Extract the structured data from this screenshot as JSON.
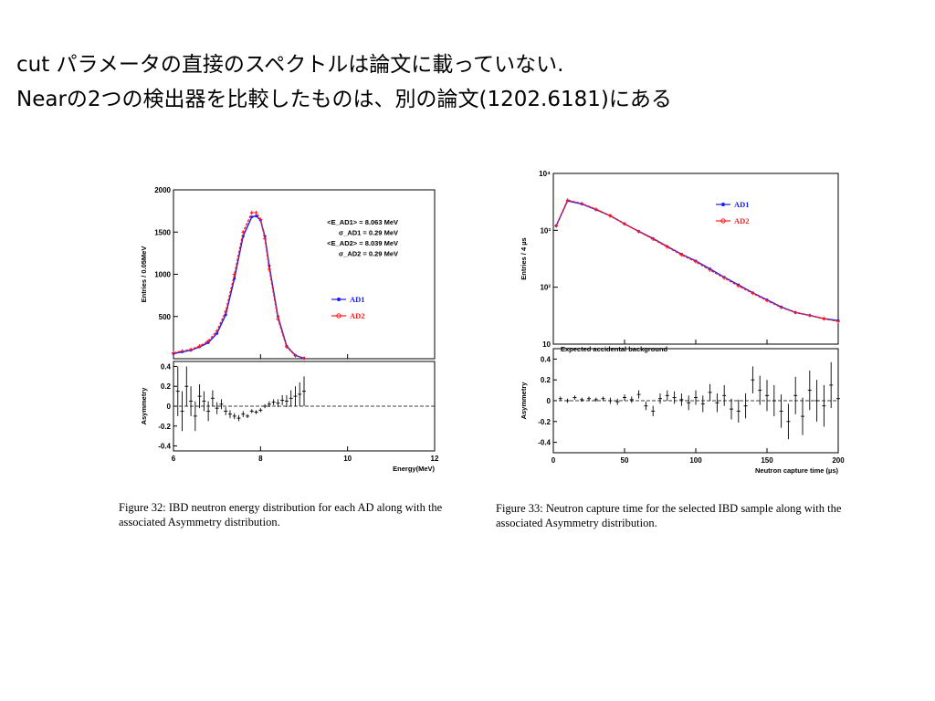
{
  "slide": {
    "line1": "cut パラメータの直接のスペクトルは論文に載っていない.",
    "line2": "Nearの2つの検出器を比較したものは、別の論文(1202.6181)にある"
  },
  "captions": {
    "fig32": "Figure 32: IBD neutron energy distribution for each AD along with the associated Asymmetry distribution.",
    "fig33": "Figure 33: Neutron capture time for the selected IBD sample along with the associated Asymmetry distribution."
  },
  "colors": {
    "ad1": "#1a1aff",
    "ad2": "#ff1a1a",
    "ink": "#000000"
  },
  "chart_data": [
    {
      "type": "line",
      "title": "",
      "xlabel": "Energy(MeV)",
      "ylabel": "Entries / 0.05MeV",
      "xlim": [
        6,
        12
      ],
      "ylim": [
        0,
        2000
      ],
      "xticks": [
        "6",
        "8",
        "10",
        "12"
      ],
      "yticks": [
        "500",
        "1000",
        "1500",
        "2000"
      ],
      "annotations": [
        "<E_AD1> = 8.063 MeV",
        "σ_AD1 = 0.29 MeV",
        "<E_AD2> = 8.039 MeV",
        "σ_AD2 = 0.29 MeV"
      ],
      "legend": [
        "AD1",
        "AD2"
      ],
      "legend_position": "right",
      "x": [
        6.0,
        6.2,
        6.4,
        6.6,
        6.8,
        7.0,
        7.2,
        7.4,
        7.6,
        7.8,
        7.9,
        8.0,
        8.1,
        8.2,
        8.4,
        8.6,
        8.8,
        9.0
      ],
      "series": [
        {
          "name": "AD1",
          "values": [
            60,
            80,
            100,
            140,
            190,
            300,
            520,
            950,
            1450,
            1680,
            1690,
            1640,
            1450,
            1100,
            500,
            150,
            40,
            5
          ]
        },
        {
          "name": "AD2",
          "values": [
            70,
            90,
            110,
            150,
            210,
            330,
            560,
            1000,
            1500,
            1730,
            1730,
            1650,
            1420,
            1060,
            470,
            140,
            35,
            5
          ]
        }
      ],
      "asymmetry": {
        "ylabel": "Asymmetry",
        "ylim": [
          -0.45,
          0.45
        ],
        "yticks": [
          "-0.4",
          "-0.2",
          "0",
          "0.2",
          "0.4"
        ],
        "x": [
          6.1,
          6.2,
          6.3,
          6.4,
          6.5,
          6.6,
          6.7,
          6.8,
          6.9,
          7.0,
          7.1,
          7.2,
          7.3,
          7.4,
          7.5,
          7.6,
          7.7,
          7.8,
          7.9,
          8.0,
          8.1,
          8.2,
          8.3,
          8.4,
          8.5,
          8.6,
          8.7,
          8.8,
          8.9,
          9.0
        ],
        "values": [
          0.15,
          -0.05,
          0.2,
          0.05,
          -0.1,
          0.1,
          0.05,
          -0.05,
          0.08,
          -0.02,
          0.02,
          -0.05,
          -0.08,
          -0.1,
          -0.12,
          -0.08,
          -0.1,
          -0.05,
          -0.06,
          -0.04,
          0.0,
          0.02,
          0.04,
          0.03,
          0.06,
          0.05,
          0.08,
          0.1,
          0.12,
          0.15
        ],
        "errors": [
          0.25,
          0.2,
          0.2,
          0.15,
          0.15,
          0.12,
          0.1,
          0.1,
          0.08,
          0.06,
          0.05,
          0.04,
          0.04,
          0.03,
          0.03,
          0.03,
          0.02,
          0.02,
          0.02,
          0.02,
          0.02,
          0.03,
          0.03,
          0.04,
          0.05,
          0.06,
          0.08,
          0.1,
          0.12,
          0.15
        ]
      }
    },
    {
      "type": "line",
      "title": "",
      "xlabel": "Neutron capture time (µs)",
      "ylabel": "Entries / 4 µs",
      "xlim": [
        0,
        200
      ],
      "ylim": [
        10,
        10000
      ],
      "log_y": true,
      "xticks": [
        "0",
        "50",
        "100",
        "150",
        "200"
      ],
      "yticks": [
        "10",
        "10²",
        "10³",
        "10⁴"
      ],
      "annotations": [
        "Expected accidental background"
      ],
      "legend": [
        "AD1",
        "AD2"
      ],
      "legend_position": "top-right",
      "x": [
        2,
        10,
        20,
        30,
        40,
        50,
        60,
        70,
        80,
        90,
        100,
        110,
        120,
        130,
        140,
        150,
        160,
        170,
        180,
        190,
        200
      ],
      "series": [
        {
          "name": "AD1",
          "values": [
            1200,
            3300,
            2900,
            2300,
            1800,
            1300,
            960,
            720,
            520,
            380,
            290,
            210,
            150,
            110,
            80,
            60,
            45,
            36,
            32,
            28,
            26
          ]
        },
        {
          "name": "AD2",
          "values": [
            1200,
            3400,
            2950,
            2350,
            1800,
            1300,
            950,
            700,
            510,
            370,
            280,
            200,
            145,
            105,
            78,
            58,
            44,
            36,
            32,
            28,
            25
          ]
        }
      ],
      "background_level": 10,
      "asymmetry": {
        "ylabel": "Asymmetry",
        "ylim": [
          -0.5,
          0.5
        ],
        "yticks": [
          "-0.4",
          "-0.2",
          "0",
          "0.2",
          "0.4"
        ],
        "x": [
          5,
          10,
          15,
          20,
          25,
          30,
          35,
          40,
          45,
          50,
          55,
          60,
          65,
          70,
          75,
          80,
          85,
          90,
          95,
          100,
          105,
          110,
          115,
          120,
          125,
          130,
          135,
          140,
          145,
          150,
          155,
          160,
          165,
          170,
          175,
          180,
          185,
          190,
          195,
          200
        ],
        "values": [
          0.02,
          0.0,
          0.03,
          0.01,
          0.02,
          0.01,
          0.02,
          0.0,
          -0.01,
          0.03,
          0.01,
          0.06,
          -0.05,
          -0.1,
          0.02,
          0.05,
          0.03,
          0.01,
          -0.02,
          0.03,
          -0.03,
          0.08,
          -0.02,
          0.05,
          -0.08,
          -0.1,
          -0.05,
          0.2,
          0.1,
          0.05,
          0.0,
          -0.1,
          -0.2,
          0.05,
          -0.15,
          0.1,
          0.0,
          -0.05,
          0.15,
          0.02
        ],
        "errors": [
          0.02,
          0.02,
          0.02,
          0.02,
          0.02,
          0.02,
          0.02,
          0.03,
          0.03,
          0.03,
          0.03,
          0.04,
          0.04,
          0.05,
          0.05,
          0.05,
          0.06,
          0.06,
          0.07,
          0.07,
          0.08,
          0.08,
          0.09,
          0.1,
          0.1,
          0.11,
          0.12,
          0.13,
          0.14,
          0.15,
          0.15,
          0.16,
          0.17,
          0.18,
          0.18,
          0.19,
          0.2,
          0.2,
          0.22,
          0.22
        ]
      }
    }
  ]
}
